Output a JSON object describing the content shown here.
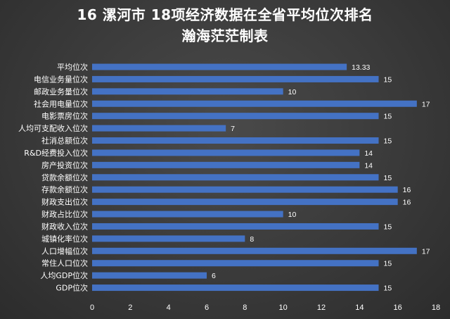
{
  "chart_data": {
    "type": "bar",
    "orientation": "horizontal",
    "title": "16 漯河市  18项经济数据在全省平均位次排名",
    "subtitle": "瀚海茫茫制表",
    "categories": [
      "平均位次",
      "电信业务量位次",
      "邮政业务量位次",
      "社会用电量位次",
      "电影票房位次",
      "人均可支配收入位次",
      "社消总额位次",
      "R&D经费投入位次",
      "房产投资位次",
      "贷款余额位次",
      "存款余额位次",
      "财政支出位次",
      "财政占比位次",
      "财政收入位次",
      "城镇化率位次",
      "人口增幅位次",
      "常住人口位次",
      "人均GDP位次",
      "GDP位次"
    ],
    "values": [
      13.33,
      15,
      10,
      17,
      15,
      7,
      15,
      14,
      14,
      15,
      16,
      16,
      10,
      15,
      8,
      17,
      15,
      6,
      15
    ],
    "value_labels": [
      "13.33",
      "15",
      "10",
      "17",
      "15",
      "7",
      "15",
      "14",
      "14",
      "15",
      "16",
      "16",
      "10",
      "15",
      "8",
      "17",
      "15",
      "6",
      "15"
    ],
    "xlim": [
      0,
      18
    ],
    "x_ticks": [
      0,
      2,
      4,
      6,
      8,
      10,
      12,
      14,
      16,
      18
    ],
    "bar_color": "#4472c4",
    "text_color": "#ffffff",
    "grid": false,
    "legend": "none"
  }
}
